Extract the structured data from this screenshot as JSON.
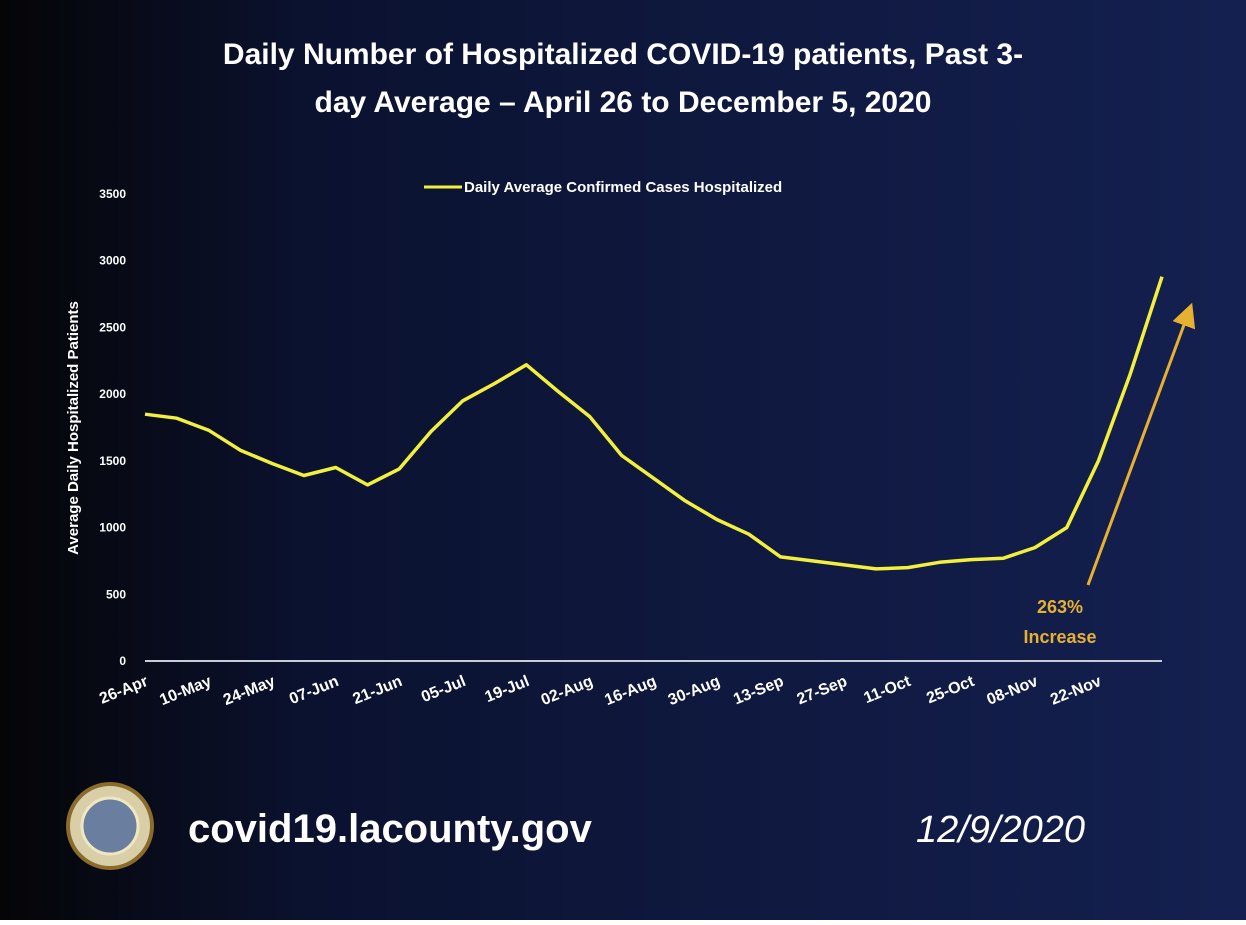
{
  "chart_data": {
    "type": "line",
    "title": [
      "Daily Number of Hospitalized COVID-19 patients, Past 3-",
      "day Average – April 26 to December 5, 2020"
    ],
    "y_label": "Average Daily Hospitalized Patients",
    "categories": [
      "26-Apr",
      null,
      "10-May",
      null,
      "24-May",
      null,
      "07-Jun",
      null,
      "21-Jun",
      null,
      "05-Jul",
      null,
      "19-Jul",
      null,
      "02-Aug",
      null,
      "16-Aug",
      null,
      "30-Aug",
      null,
      "13-Sep",
      null,
      "27-Sep",
      null,
      "11-Oct",
      null,
      "25-Oct",
      null,
      "08-Nov",
      null,
      "22-Nov",
      null,
      null
    ],
    "series": [
      {
        "name": "Daily Average Confirmed Cases Hospitalized",
        "color": "#f2f03c",
        "values": [
          1850,
          1820,
          1730,
          1580,
          1480,
          1390,
          1450,
          1320,
          1440,
          1720,
          1950,
          2080,
          2220,
          2020,
          1830,
          1540,
          1370,
          1200,
          1060,
          950,
          780,
          750,
          720,
          690,
          700,
          740,
          760,
          770,
          850,
          1000,
          1500,
          2150,
          2880
        ]
      }
    ],
    "ylim": [
      0,
      3500
    ],
    "yticks": [
      0,
      500,
      1000,
      1500,
      2000,
      2500,
      3000,
      3500
    ],
    "annotation": [
      "263%",
      "Increase"
    ],
    "annotation_color": "#e8b030",
    "legend": "top",
    "website": "covid19.lacounty.gov",
    "date": "12/9/2020"
  }
}
